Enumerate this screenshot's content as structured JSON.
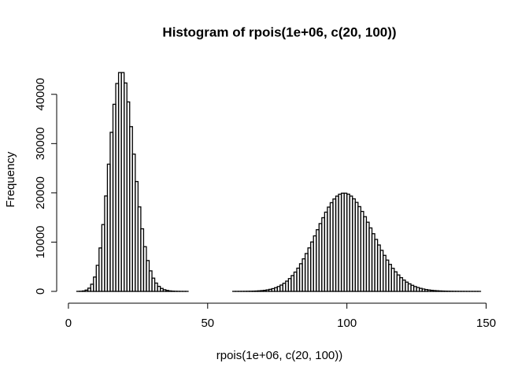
{
  "chart_data": {
    "type": "histogram",
    "title": "Histogram of rpois(1e+06, c(20, 100))",
    "x_label": "rpois(1e+06, c(20, 100))",
    "y_label": "Frequency",
    "color": "#000000",
    "bins": [
      3,
      4,
      5,
      6,
      7,
      8,
      9,
      10,
      11,
      12,
      13,
      14,
      15,
      16,
      17,
      18,
      19,
      20,
      21,
      22,
      23,
      24,
      25,
      26,
      27,
      28,
      29,
      30,
      31,
      32,
      33,
      34,
      35,
      36,
      37,
      38,
      39,
      40,
      41,
      42,
      43,
      44,
      45,
      46,
      47,
      48,
      49,
      50,
      51,
      52,
      53,
      54,
      55,
      56,
      57,
      58,
      59,
      60,
      61,
      62,
      63,
      64,
      65,
      66,
      67,
      68,
      69,
      70,
      71,
      72,
      73,
      74,
      75,
      76,
      77,
      78,
      79,
      80,
      81,
      82,
      83,
      84,
      85,
      86,
      87,
      88,
      89,
      90,
      91,
      92,
      93,
      94,
      95,
      96,
      97,
      98,
      99,
      100,
      101,
      102,
      103,
      104,
      105,
      106,
      107,
      108,
      109,
      110,
      111,
      112,
      113,
      114,
      115,
      116,
      117,
      118,
      119,
      120,
      121,
      122,
      123,
      124,
      125,
      126,
      127,
      128,
      129,
      130,
      131,
      132,
      133,
      134,
      135,
      136,
      137,
      138,
      139,
      140,
      141,
      142,
      143,
      144,
      145,
      146,
      147,
      148
    ],
    "values": [
      8,
      27,
      92,
      262,
      655,
      1455,
      2910,
      5290,
      8815,
      13560,
      19370,
      25825,
      32285,
      37980,
      42200,
      44420,
      44420,
      42305,
      38460,
      33445,
      27870,
      22295,
      17150,
      12705,
      9075,
      6260,
      4170,
      2690,
      1685,
      1020,
      600,
      343,
      190,
      103,
      54,
      28,
      14,
      7,
      3,
      1,
      0,
      0,
      0,
      0,
      0,
      0,
      0,
      0,
      0,
      0,
      0,
      0,
      0,
      0,
      0,
      0,
      2,
      4,
      6,
      9,
      15,
      23,
      34,
      51,
      75,
      108,
      155,
      218,
      303,
      415,
      560,
      750,
      985,
      1280,
      1645,
      2080,
      2600,
      3210,
      3915,
      4715,
      5615,
      6605,
      7680,
      8825,
      10030,
      11270,
      12520,
      13760,
      14955,
      16080,
      17105,
      18005,
      18755,
      19335,
      19730,
      19930,
      19930,
      19735,
      19345,
      18785,
      18060,
      17200,
      16225,
      15165,
      14040,
      12880,
      11710,
      10550,
      9420,
      8335,
      7310,
      6355,
      5480,
      4685,
      3970,
      3335,
      2780,
      2295,
      1880,
      1530,
      1235,
      985,
      785,
      615,
      480,
      373,
      287,
      219,
      166,
      125,
      93,
      69,
      50,
      37,
      27,
      19,
      14,
      10,
      7,
      5,
      3,
      2,
      2,
      1,
      1
    ],
    "xlim": [
      -2.8,
      153.8
    ],
    "ylim": [
      0,
      46200
    ],
    "xticks": [
      0,
      50,
      100,
      150
    ],
    "yticks": [
      0,
      10000,
      20000,
      30000,
      40000
    ]
  }
}
